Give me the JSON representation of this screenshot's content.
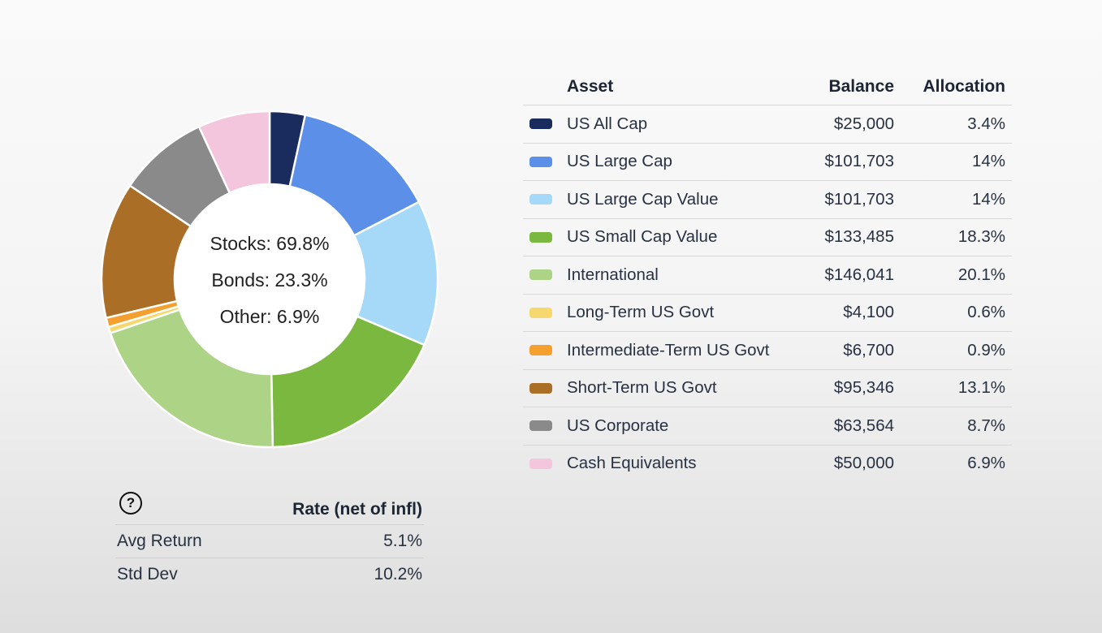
{
  "chart_data": {
    "type": "pie",
    "center_labels": [
      "Stocks: 69.8%",
      "Bonds: 23.3%",
      "Other: 6.9%"
    ],
    "slices": [
      {
        "label": "US All Cap",
        "value": 3.4,
        "color": "#1a2b5e"
      },
      {
        "label": "US Large Cap",
        "value": 14,
        "color": "#5b8fe8"
      },
      {
        "label": "US Large Cap Value",
        "value": 14,
        "color": "#a6d8f8"
      },
      {
        "label": "US Small Cap Value",
        "value": 18.3,
        "color": "#7ab83f"
      },
      {
        "label": "International",
        "value": 20.1,
        "color": "#add386"
      },
      {
        "label": "Long-Term US Govt",
        "value": 0.6,
        "color": "#f6d86e"
      },
      {
        "label": "Intermediate-Term US Govt",
        "value": 0.9,
        "color": "#f5a02e"
      },
      {
        "label": "Short-Term US Govt",
        "value": 13.1,
        "color": "#ab6e27"
      },
      {
        "label": "US Corporate",
        "value": 8.7,
        "color": "#8a8a8a"
      },
      {
        "label": "Cash Equivalents",
        "value": 6.9,
        "color": "#f4c6de"
      }
    ]
  },
  "asset_table": {
    "headers": {
      "asset": "Asset",
      "balance": "Balance",
      "allocation": "Allocation"
    },
    "rows": [
      {
        "asset": "US All Cap",
        "balance": "$25,000",
        "allocation": "3.4%",
        "color": "#1a2b5e"
      },
      {
        "asset": "US Large Cap",
        "balance": "$101,703",
        "allocation": "14%",
        "color": "#5b8fe8"
      },
      {
        "asset": "US Large Cap Value",
        "balance": "$101,703",
        "allocation": "14%",
        "color": "#a6d8f8"
      },
      {
        "asset": "US Small Cap Value",
        "balance": "$133,485",
        "allocation": "18.3%",
        "color": "#7ab83f"
      },
      {
        "asset": "International",
        "balance": "$146,041",
        "allocation": "20.1%",
        "color": "#add386"
      },
      {
        "asset": "Long-Term US Govt",
        "balance": "$4,100",
        "allocation": "0.6%",
        "color": "#f6d86e"
      },
      {
        "asset": "Intermediate-Term US Govt",
        "balance": "$6,700",
        "allocation": "0.9%",
        "color": "#f5a02e"
      },
      {
        "asset": "Short-Term US Govt",
        "balance": "$95,346",
        "allocation": "13.1%",
        "color": "#ab6e27"
      },
      {
        "asset": "US Corporate",
        "balance": "$63,564",
        "allocation": "8.7%",
        "color": "#8a8a8a"
      },
      {
        "asset": "Cash Equivalents",
        "balance": "$50,000",
        "allocation": "6.9%",
        "color": "#f4c6de"
      }
    ]
  },
  "rate_table": {
    "help_icon": "question-circle-icon",
    "help_glyph": "?",
    "header": "Rate (net of infl)",
    "rows": [
      {
        "label": "Avg Return",
        "value": "5.1%"
      },
      {
        "label": "Std Dev",
        "value": "10.2%"
      }
    ]
  }
}
